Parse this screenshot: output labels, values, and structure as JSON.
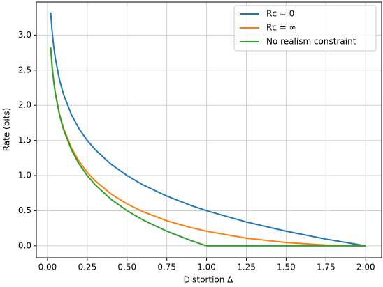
{
  "chart_data": {
    "type": "line",
    "xlabel": "Distortion Δ",
    "ylabel": "Rate (bits)",
    "x": [
      0.02,
      0.03,
      0.04,
      0.05,
      0.075,
      0.1,
      0.15,
      0.2,
      0.25,
      0.3,
      0.4,
      0.5,
      0.6,
      0.75,
      0.9,
      1.0,
      1.25,
      1.5,
      1.75,
      2.0
    ],
    "series": [
      {
        "name": "Rc = 0",
        "color": "#1f77b4",
        "values": [
          3.322,
          3.029,
          2.822,
          2.661,
          2.369,
          2.161,
          1.869,
          1.661,
          1.5,
          1.368,
          1.161,
          1.0,
          0.868,
          0.708,
          0.576,
          0.5,
          0.339,
          0.208,
          0.096,
          0
        ]
      },
      {
        "name": "Rc = ∞",
        "color": "#ff7f0e",
        "values": [
          2.826,
          2.535,
          2.329,
          2.17,
          1.882,
          1.679,
          1.396,
          1.198,
          1.047,
          0.925,
          0.737,
          0.596,
          0.486,
          0.357,
          0.26,
          0.2075,
          0.109,
          0.047,
          0.011,
          0
        ]
      },
      {
        "name": "No realism constraint",
        "color": "#2ca02c",
        "values": [
          2.822,
          2.529,
          2.322,
          2.161,
          1.869,
          1.661,
          1.369,
          1.161,
          1.0,
          0.868,
          0.661,
          0.5,
          0.368,
          0.208,
          0.076,
          0,
          0,
          0,
          0,
          0
        ]
      }
    ],
    "xlim": [
      -0.07,
      2.1
    ],
    "ylim": [
      -0.17,
      3.47
    ],
    "xticks": [
      {
        "value": 0,
        "label": "0.00"
      },
      0.25,
      {
        "value": 0.5,
        "label": "0.50"
      },
      0.75,
      {
        "value": 1,
        "label": "1.00"
      },
      1.25,
      {
        "value": 1.5,
        "label": "1.50"
      },
      1.75,
      {
        "value": 2,
        "label": "2.00"
      }
    ],
    "yticks": [
      {
        "value": 0,
        "label": "0.0"
      },
      0.5,
      {
        "value": 1,
        "label": "1.0"
      },
      1.5,
      {
        "value": 2,
        "label": "2.0"
      },
      2.5,
      {
        "value": 3,
        "label": "3.0"
      }
    ],
    "grid": true,
    "legend": "upper right"
  }
}
